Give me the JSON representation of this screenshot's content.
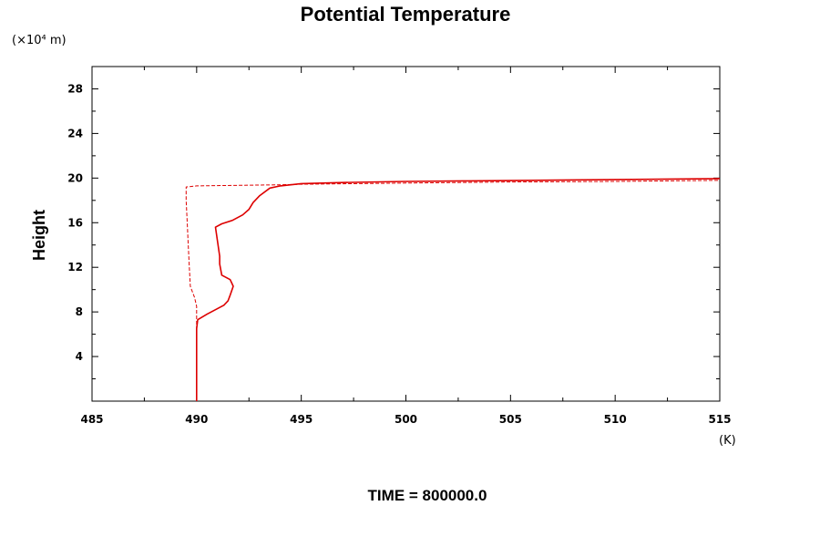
{
  "chart_data": {
    "type": "line",
    "title": "Potential Temperature",
    "ylabel": "Height",
    "y_scale_label": "(×10⁴ m)",
    "x_unit_label": "(K)",
    "footer": "TIME = 800000.0",
    "xlim": [
      485,
      515
    ],
    "ylim": [
      0,
      30
    ],
    "x_major_ticks": [
      485,
      490,
      495,
      500,
      505,
      510,
      515
    ],
    "x_tick_labels": [
      "485",
      "490",
      "495",
      "500",
      "505",
      "510",
      "515"
    ],
    "y_major_ticks": [
      4,
      8,
      12,
      16,
      20,
      24,
      28
    ],
    "y_tick_labels": [
      "4",
      "8",
      "12",
      "16",
      "20",
      "24",
      "28"
    ],
    "grid": false,
    "colors": {
      "series": "#dd0000",
      "axes": "#000000"
    },
    "series": [
      {
        "style": "solid",
        "points": [
          [
            490.0,
            0.0
          ],
          [
            490.0,
            4.0
          ],
          [
            490.0,
            6.5
          ],
          [
            490.05,
            7.3
          ],
          [
            490.5,
            7.8
          ],
          [
            490.9,
            8.2
          ],
          [
            491.3,
            8.6
          ],
          [
            491.5,
            9.0
          ],
          [
            491.6,
            9.5
          ],
          [
            491.75,
            10.3
          ],
          [
            491.6,
            10.9
          ],
          [
            491.2,
            11.3
          ],
          [
            491.1,
            12.3
          ],
          [
            491.1,
            13.0
          ],
          [
            491.0,
            14.3
          ],
          [
            490.9,
            15.6
          ],
          [
            491.2,
            15.9
          ],
          [
            491.7,
            16.2
          ],
          [
            492.2,
            16.7
          ],
          [
            492.5,
            17.2
          ],
          [
            492.7,
            17.8
          ],
          [
            493.0,
            18.4
          ],
          [
            493.5,
            19.1
          ],
          [
            494.0,
            19.3
          ],
          [
            495.0,
            19.5
          ],
          [
            497.0,
            19.6
          ],
          [
            500.0,
            19.7
          ],
          [
            503.0,
            19.75
          ],
          [
            506.0,
            19.8
          ],
          [
            509.0,
            19.85
          ],
          [
            512.0,
            19.9
          ],
          [
            515.0,
            19.95
          ]
        ]
      },
      {
        "style": "dashed",
        "points": [
          [
            490.0,
            0.0
          ],
          [
            490.0,
            4.0
          ],
          [
            490.0,
            7.0
          ],
          [
            490.0,
            8.5
          ],
          [
            489.9,
            9.3
          ],
          [
            489.7,
            10.3
          ],
          [
            489.65,
            12.0
          ],
          [
            489.6,
            14.0
          ],
          [
            489.55,
            16.0
          ],
          [
            489.5,
            18.0
          ],
          [
            489.5,
            19.2
          ],
          [
            490.0,
            19.3
          ],
          [
            492.0,
            19.35
          ],
          [
            494.0,
            19.4
          ],
          [
            495.0,
            19.45
          ],
          [
            500.0,
            19.55
          ],
          [
            505.0,
            19.65
          ],
          [
            510.0,
            19.7
          ],
          [
            515.0,
            19.8
          ]
        ]
      }
    ]
  }
}
